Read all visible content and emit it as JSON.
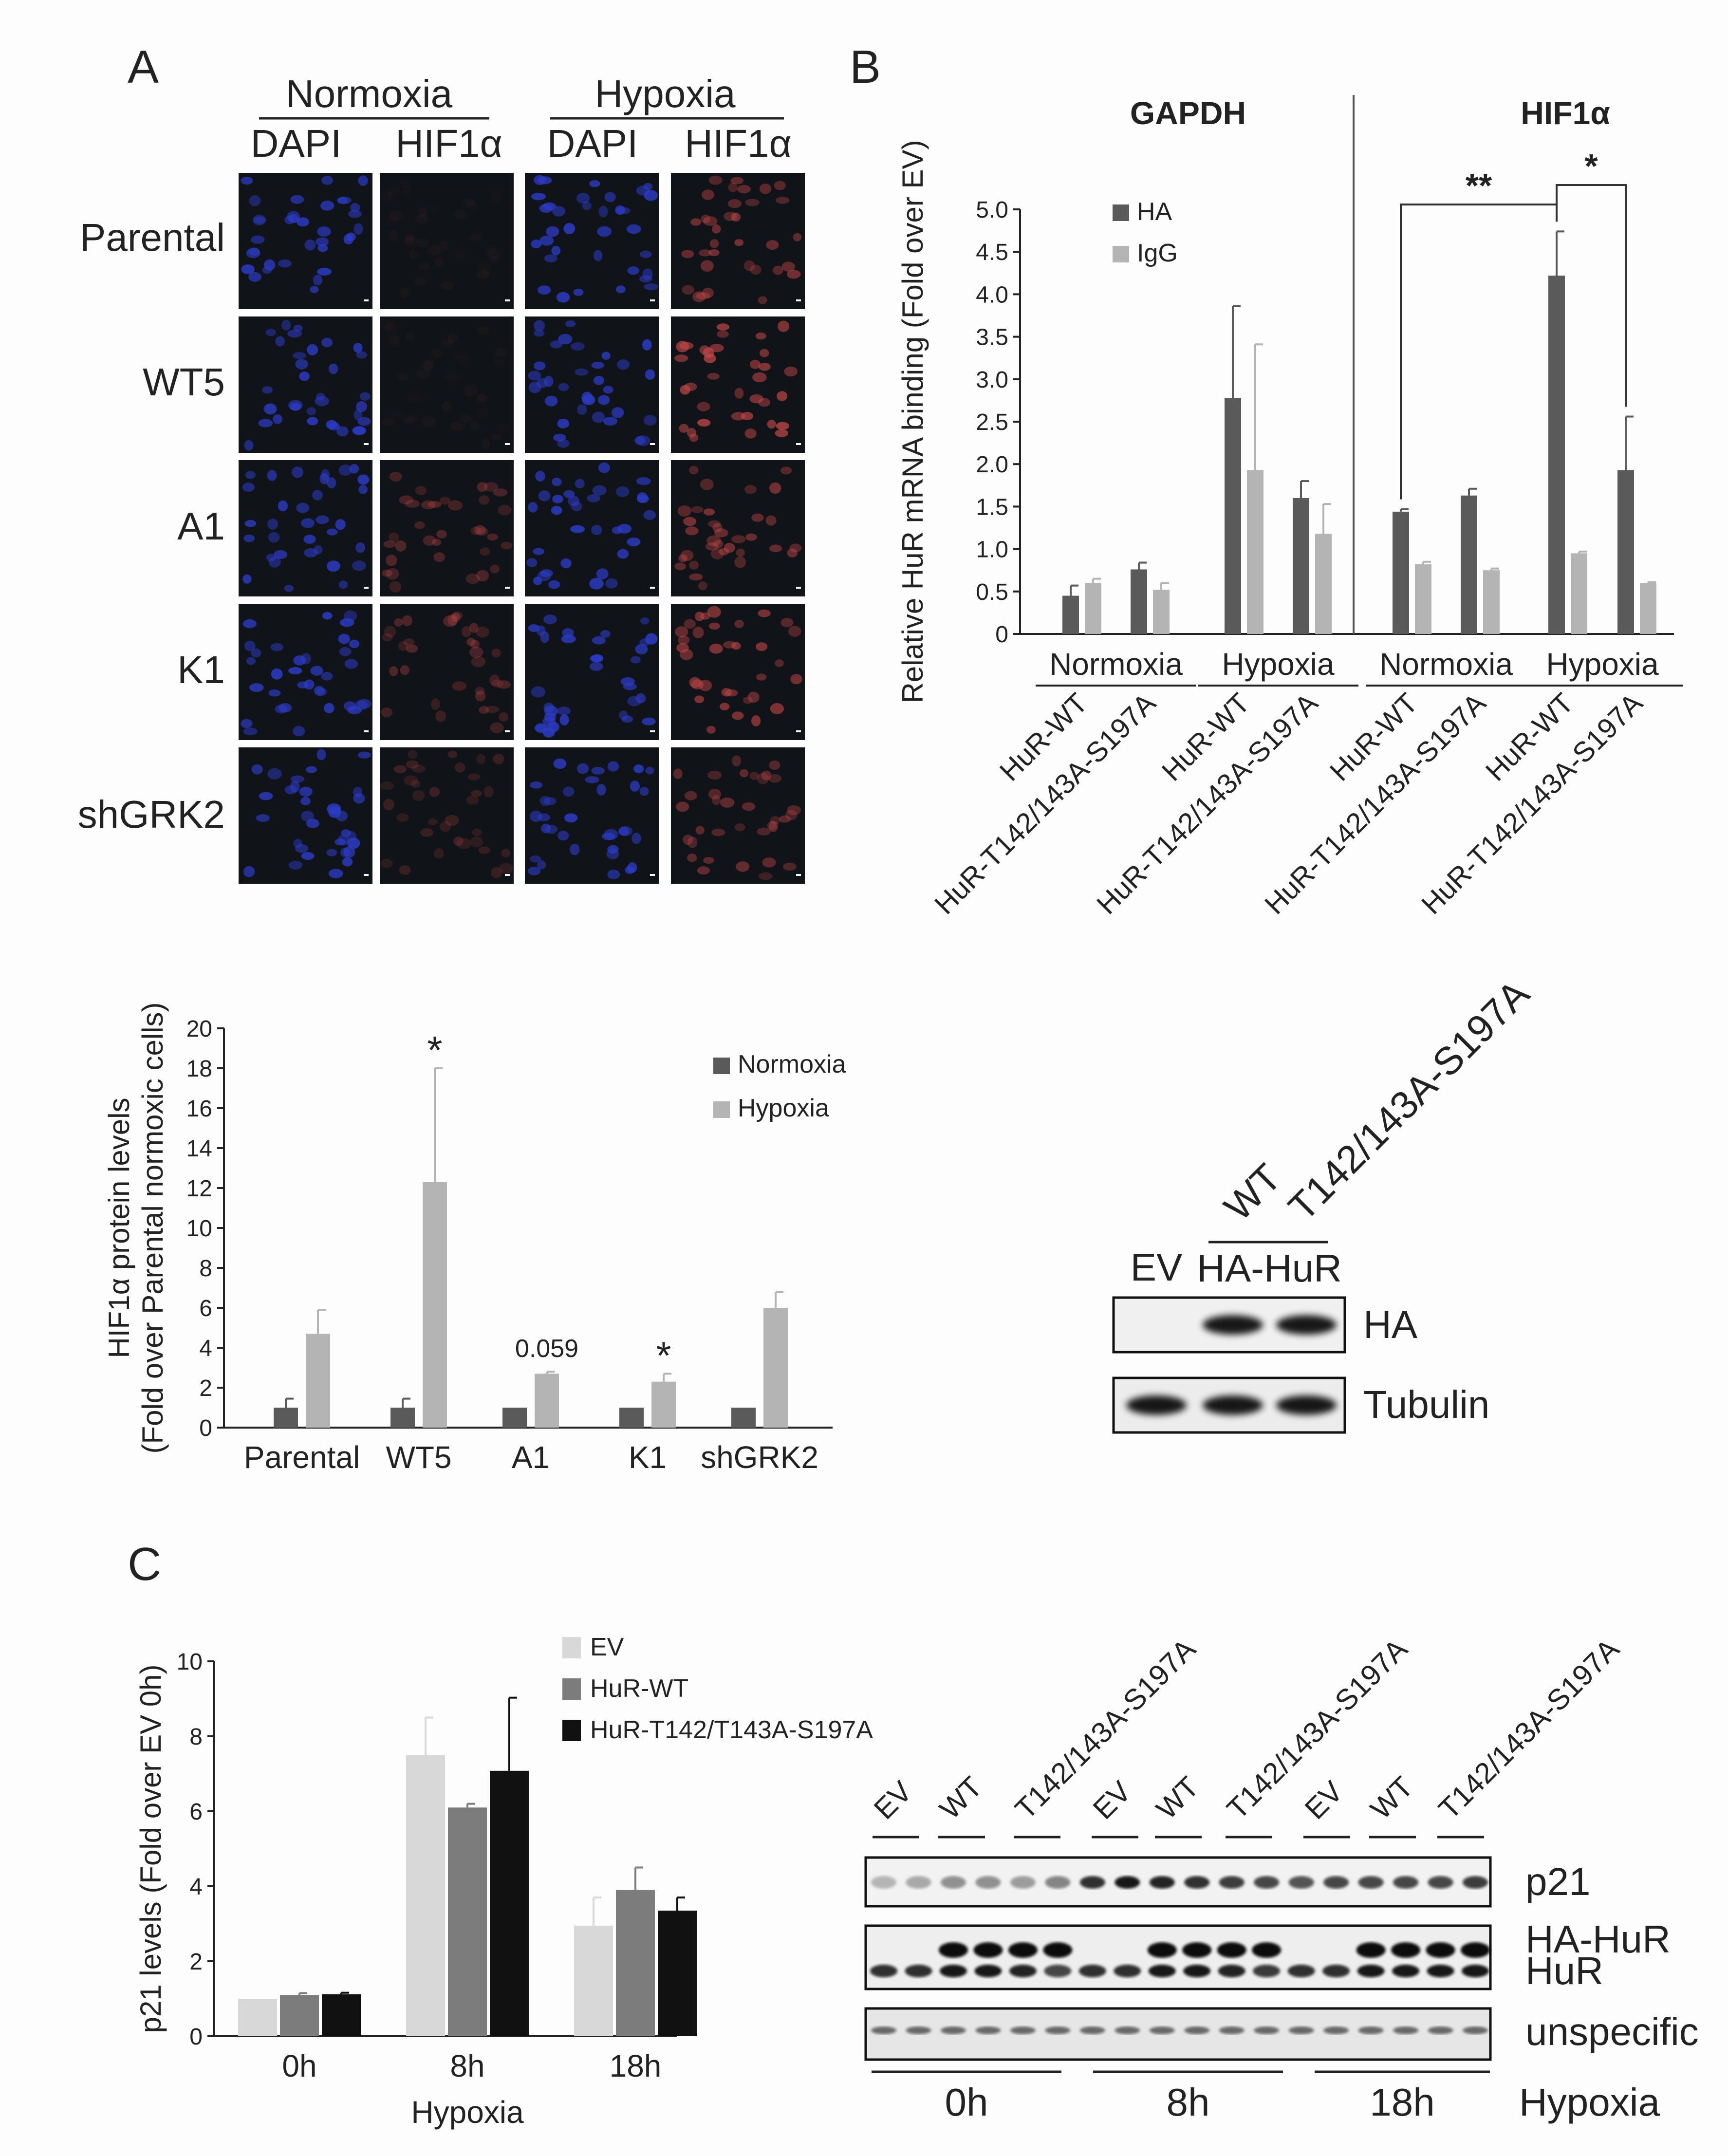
{
  "panels": {
    "a": {
      "letter": "A"
    },
    "b": {
      "letter": "B"
    },
    "c": {
      "letter": "C"
    }
  },
  "microscopy": {
    "conditions": [
      "Normoxia",
      "Hypoxia"
    ],
    "channels": [
      "DAPI",
      "HIF1α",
      "DAPI",
      "HIF1α"
    ],
    "rows": [
      "Parental",
      "WT5",
      "A1",
      "K1",
      "shGRK2"
    ],
    "channel_colors": {
      "DAPI": "#2c3cc8",
      "HIF1α": "#c84848"
    },
    "hif_staining_level": {
      "Parental": [
        0.05,
        0.55
      ],
      "WT5": [
        0.05,
        0.75
      ],
      "A1": [
        0.35,
        0.55
      ],
      "K1": [
        0.35,
        0.6
      ],
      "shGRK2": [
        0.25,
        0.45
      ]
    }
  },
  "chart_data": [
    {
      "id": "hif1a_protein",
      "type": "bar",
      "ylabel": "HIF1α protein levels\n(Fold over Parental normoxic cells)",
      "ylim": [
        0,
        20
      ],
      "yticks": [
        "0",
        "2",
        "4",
        "6",
        "8",
        "10",
        "12",
        "14",
        "16",
        "18",
        "20"
      ],
      "categories": [
        "Parental",
        "WT5",
        "A1",
        "K1",
        "shGRK2"
      ],
      "series": [
        {
          "name": "Normoxia",
          "color": "#5a5a5a",
          "values": [
            1.0,
            1.0,
            1.0,
            1.0,
            1.0
          ],
          "errors": [
            0.45,
            0.45,
            0,
            0,
            0
          ]
        },
        {
          "name": "Hypoxia",
          "color": "#b4b4b4",
          "values": [
            4.7,
            12.3,
            2.7,
            2.3,
            6.0
          ],
          "errors": [
            1.2,
            5.7,
            0.1,
            0.4,
            0.8
          ]
        }
      ],
      "annotations": [
        {
          "category": "WT5",
          "text": "*"
        },
        {
          "category": "A1",
          "text": "0.059"
        },
        {
          "category": "K1",
          "text": "*"
        }
      ],
      "legend": "top-right",
      "grid": false
    },
    {
      "id": "hur_mrna_binding",
      "type": "bar",
      "ylabel": "Relative HuR mRNA binding (Fold over EV)",
      "ylim": [
        0,
        5.0
      ],
      "yticks": [
        "0",
        "0.5",
        "1.0",
        "1.5",
        "2.0",
        "2.5",
        "3.0",
        "3.5",
        "4.0",
        "4.5",
        "5.0"
      ],
      "groups": [
        "GAPDH",
        "HIF1α"
      ],
      "conditions": [
        "Normoxia",
        "Hypoxia",
        "Normoxia",
        "Hypoxia"
      ],
      "categories": [
        "HuR-WT",
        "HuR-T142/143A-S197A",
        "HuR-WT",
        "HuR-T142/143A-S197A",
        "HuR-WT",
        "HuR-T142/143A-S197A",
        "HuR-WT",
        "HuR-T142/143A-S197A"
      ],
      "series": [
        {
          "name": "HA",
          "color": "#5a5a5a",
          "values": [
            0.45,
            0.76,
            2.78,
            1.6,
            1.44,
            1.63,
            4.22,
            1.93
          ],
          "errors": [
            0.12,
            0.08,
            1.08,
            0.2,
            0.03,
            0.08,
            0.52,
            0.63
          ]
        },
        {
          "name": "IgG",
          "color": "#b4b4b4",
          "values": [
            0.6,
            0.52,
            1.93,
            1.18,
            0.82,
            0.75,
            0.95,
            0.6
          ],
          "errors": [
            0.05,
            0.08,
            1.48,
            0.35,
            0.03,
            0.02,
            0.02,
            0.01
          ]
        }
      ],
      "significance": [
        {
          "from": 4,
          "to": 6,
          "text": "**"
        },
        {
          "from": 6,
          "to": 7,
          "text": "*"
        }
      ],
      "legend": "top-left",
      "grid": false
    },
    {
      "id": "p21_levels",
      "type": "bar",
      "ylabel": "p21 levels (Fold over EV 0h)",
      "xlabel": "Hypoxia",
      "ylim": [
        0,
        10
      ],
      "yticks": [
        "0",
        "2",
        "4",
        "6",
        "8",
        "10"
      ],
      "categories": [
        "0h",
        "8h",
        "18h"
      ],
      "series": [
        {
          "name": "EV",
          "color": "#d8d8d8",
          "values": [
            1.0,
            7.5,
            2.95
          ],
          "errors": [
            0,
            1.0,
            0.75
          ]
        },
        {
          "name": "HuR-WT",
          "color": "#7c7c7c",
          "values": [
            1.1,
            6.1,
            3.9
          ],
          "errors": [
            0.05,
            0.1,
            0.6
          ]
        },
        {
          "name": "HuR-T142/T143A-S197A",
          "color": "#111111",
          "values": [
            1.12,
            7.08,
            3.35
          ],
          "errors": [
            0.04,
            1.95,
            0.35
          ]
        }
      ],
      "legend": "top-right",
      "grid": false
    }
  ],
  "blot_b": {
    "lanes_label": {
      "ev": "EV",
      "wt": "WT",
      "mut": "T142/143A-S197A",
      "group": "HA-HuR"
    },
    "strips": [
      {
        "name": "HA",
        "intensity": [
          0,
          0.9,
          0.9
        ]
      },
      {
        "name": "Tubulin",
        "intensity": [
          0.9,
          0.9,
          0.9
        ]
      }
    ]
  },
  "blot_c": {
    "lane_labels": [
      "EV",
      "WT",
      "T142/143A-S197A",
      "EV",
      "WT",
      "T142/143A-S197A",
      "EV",
      "WT",
      "T142/143A-S197A"
    ],
    "timepoints": [
      "0h",
      "8h",
      "18h"
    ],
    "condition": "Hypoxia",
    "strips": [
      {
        "name": "p21",
        "intensity": [
          0.25,
          0.3,
          0.4,
          0.4,
          0.35,
          0.45,
          0.8,
          0.9,
          0.85,
          0.8,
          0.75,
          0.7,
          0.65,
          0.7,
          0.7,
          0.7,
          0.7,
          0.75
        ]
      },
      {
        "name": "HA-HuR",
        "intensity": [
          0,
          0,
          0.95,
          0.95,
          0.95,
          0.95,
          0,
          0,
          0.95,
          0.95,
          0.95,
          0.95,
          0,
          0,
          0.95,
          0.95,
          0.95,
          0.95
        ]
      },
      {
        "name": "HuR",
        "intensity": [
          0.8,
          0.8,
          0.9,
          0.9,
          0.85,
          0.7,
          0.8,
          0.8,
          0.9,
          0.9,
          0.85,
          0.75,
          0.8,
          0.8,
          0.9,
          0.9,
          0.9,
          0.9
        ]
      },
      {
        "name": "unspecific",
        "intensity": [
          0.55,
          0.55,
          0.55,
          0.55,
          0.55,
          0.55,
          0.55,
          0.55,
          0.55,
          0.55,
          0.55,
          0.55,
          0.55,
          0.55,
          0.55,
          0.55,
          0.55,
          0.55
        ]
      }
    ]
  }
}
